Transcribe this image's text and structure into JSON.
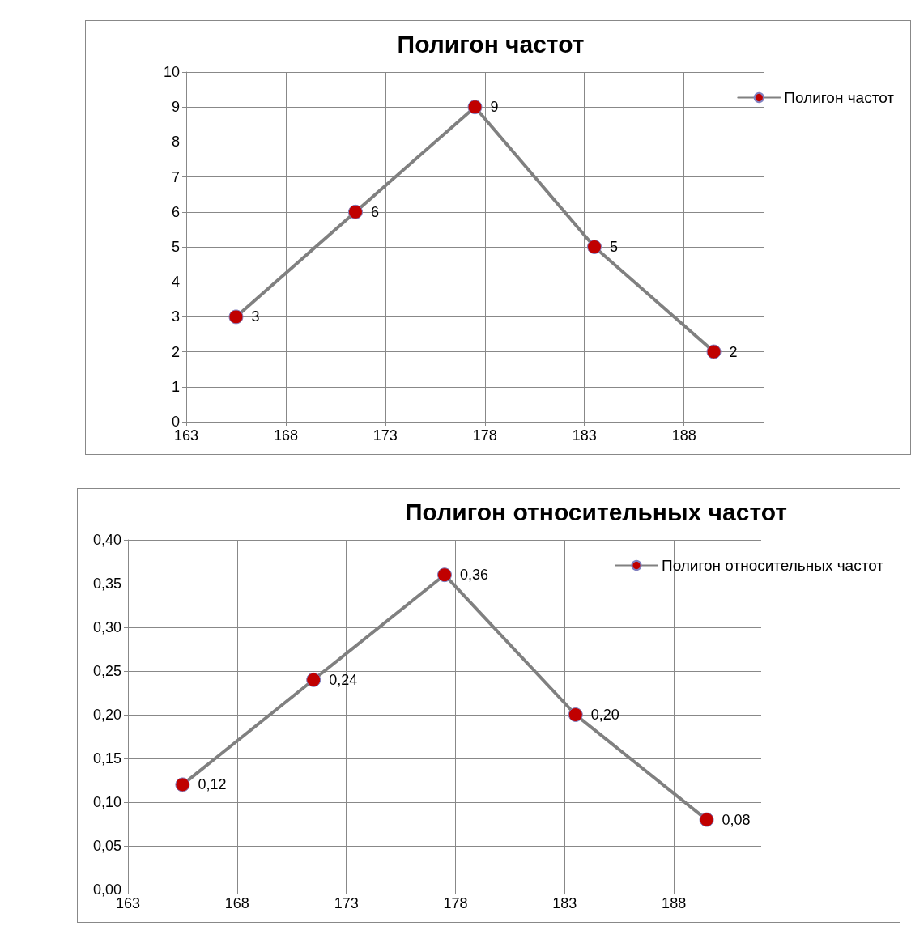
{
  "chart_data": [
    {
      "type": "line",
      "title": "Полигон частот",
      "x": [
        165.5,
        171.5,
        177.5,
        183.5,
        189.5
      ],
      "series": [
        {
          "name": "Полигон частот",
          "color": "#c00000",
          "values": [
            3,
            6,
            9,
            5,
            2
          ]
        }
      ],
      "xlim": [
        163,
        192
      ],
      "xticks": [
        163,
        168,
        173,
        178,
        183,
        188
      ],
      "ylim": [
        0,
        10
      ],
      "yticks": [
        0,
        1,
        2,
        3,
        4,
        5,
        6,
        7,
        8,
        9,
        10
      ],
      "grid": true,
      "legend": "top right",
      "marker": "circle",
      "line_style": "solid",
      "data_labels": true
    },
    {
      "type": "line",
      "title": "Полигон относительных частот",
      "x": [
        165.5,
        171.5,
        177.5,
        183.5,
        189.5
      ],
      "series": [
        {
          "name": "Полигон относительных частот",
          "color": "#c00000",
          "values": [
            0.12,
            0.24,
            0.36,
            0.2,
            0.08
          ],
          "value_labels": [
            "0,12",
            "0,24",
            "0,36",
            "0,20",
            "0,08"
          ]
        }
      ],
      "xlim": [
        163,
        192
      ],
      "xticks": [
        163,
        168,
        173,
        178,
        183,
        188
      ],
      "ylim": [
        0,
        0.4
      ],
      "yticks": [
        {
          "value": 0,
          "label": "0,00"
        },
        {
          "value": 0.05,
          "label": "0,05"
        },
        {
          "value": 0.1,
          "label": "0,10"
        },
        {
          "value": 0.15,
          "label": "0,15"
        },
        {
          "value": 0.2,
          "label": "0,20"
        },
        {
          "value": 0.25,
          "label": "0,25"
        },
        {
          "value": 0.3,
          "label": "0,30"
        },
        {
          "value": 0.35,
          "label": "0,35"
        },
        {
          "value": 0.4,
          "label": "0,40"
        }
      ],
      "grid": true,
      "legend": "top right",
      "marker": "circle",
      "line_style": "solid"
    }
  ]
}
